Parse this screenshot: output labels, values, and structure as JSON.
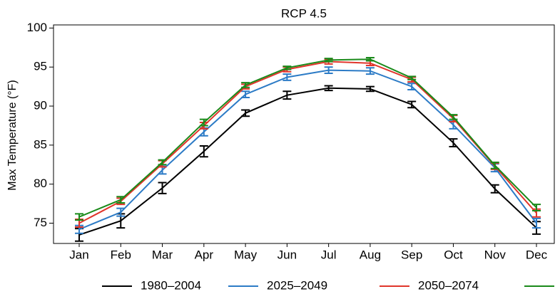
{
  "chart_data": {
    "type": "line",
    "title": "RCP 4.5",
    "y_label": "Max Temperature (°F)",
    "categories": [
      "Jan",
      "Feb",
      "Mar",
      "Apr",
      "May",
      "Jun",
      "Jul",
      "Aug",
      "Sep",
      "Oct",
      "Nov",
      "Dec"
    ],
    "ylim": [
      72.4,
      100.4
    ],
    "yticks": [
      75,
      80,
      85,
      90,
      95,
      100
    ],
    "series": [
      {
        "name": "1980–2004",
        "color": "#000000",
        "values": [
          73.5,
          75.3,
          79.5,
          84.2,
          89.1,
          91.4,
          92.3,
          92.2,
          90.2,
          85.3,
          79.4,
          74.4
        ],
        "errors": [
          0.8,
          0.9,
          0.7,
          0.7,
          0.4,
          0.5,
          0.3,
          0.3,
          0.4,
          0.5,
          0.5,
          0.8
        ]
      },
      {
        "name": "2025–2049",
        "color": "#2c7bc6",
        "values": [
          74.2,
          76.4,
          81.8,
          86.7,
          91.5,
          93.7,
          94.6,
          94.5,
          92.5,
          87.6,
          82.1,
          75.0
        ],
        "errors": [
          0.5,
          0.5,
          0.5,
          0.5,
          0.4,
          0.4,
          0.4,
          0.4,
          0.4,
          0.5,
          0.5,
          0.6
        ]
      },
      {
        "name": "2050–2074",
        "color": "#e0352b",
        "values": [
          75.0,
          77.8,
          82.6,
          87.5,
          92.5,
          94.7,
          95.7,
          95.5,
          93.4,
          88.4,
          82.3,
          76.3
        ],
        "errors": [
          0.5,
          0.4,
          0.4,
          0.4,
          0.3,
          0.3,
          0.3,
          0.3,
          0.3,
          0.4,
          0.4,
          0.5
        ]
      },
      {
        "name": null,
        "color": "#1a8a1a",
        "values": [
          75.8,
          78.0,
          82.8,
          87.9,
          92.7,
          94.9,
          95.9,
          96.0,
          93.6,
          88.6,
          82.4,
          77.0
        ],
        "errors": [
          0.4,
          0.4,
          0.3,
          0.4,
          0.3,
          0.2,
          0.2,
          0.2,
          0.2,
          0.3,
          0.4,
          0.4
        ]
      }
    ]
  }
}
